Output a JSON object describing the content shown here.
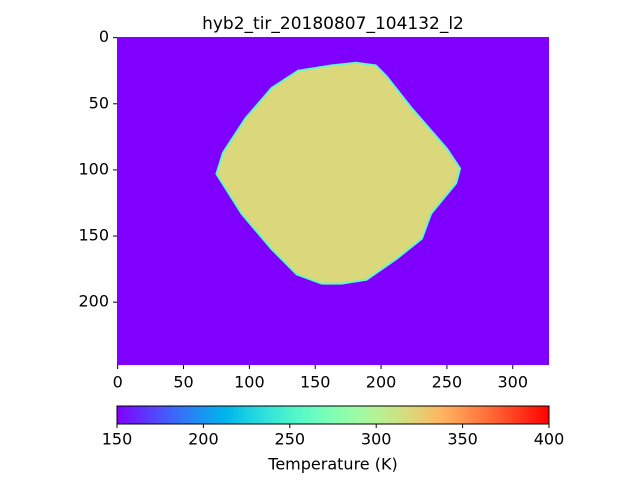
{
  "chart_data": {
    "type": "image",
    "title": "hyb2_tir_20180807_104132_l2",
    "xlim": [
      -0.5,
      327.5
    ],
    "xticks": [
      0,
      50,
      100,
      150,
      200,
      250,
      300
    ],
    "ylim": [
      247.5,
      -0.5
    ],
    "yticks": [
      0,
      50,
      100,
      150,
      200
    ],
    "colormap": "rainbow",
    "background_value": 150,
    "region": {
      "fill_value": 320,
      "outline_x": [
        137,
        162,
        181,
        196,
        204,
        223,
        250,
        260,
        257,
        238,
        231,
        212,
        189,
        170,
        155,
        136,
        117,
        94,
        75,
        80,
        97,
        117
      ],
      "outline_y": [
        25,
        21,
        19,
        21,
        29,
        53,
        84,
        99,
        110,
        133,
        152,
        167,
        183,
        186,
        186,
        179,
        160,
        133,
        103,
        87,
        61,
        38
      ]
    },
    "colorbar": {
      "label": "Temperature (K)",
      "clim": [
        150,
        400
      ],
      "ticks": [
        150,
        200,
        250,
        300,
        350,
        400
      ]
    }
  }
}
